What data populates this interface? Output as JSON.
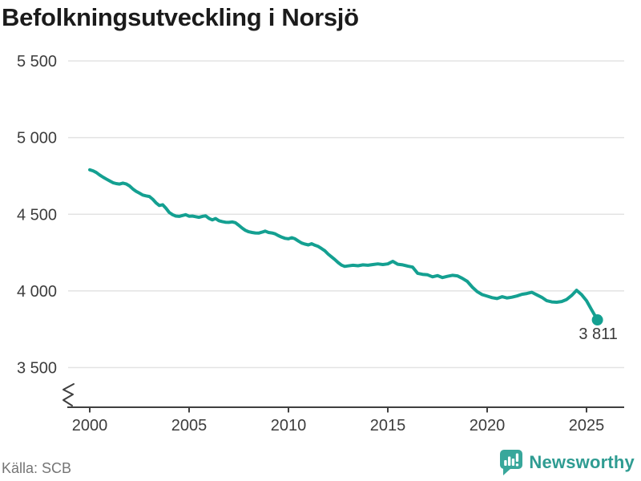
{
  "chart_data": {
    "type": "line",
    "title": "Befolkningsutveckling i Norsjö",
    "xlabel": "",
    "ylabel": "",
    "xlim": [
      1999,
      2027.2
    ],
    "ylim": [
      3500,
      5500
    ],
    "axis_break_bottom_left": true,
    "grid": "horizontal",
    "x_ticks": [
      2000,
      2005,
      2010,
      2015,
      2020,
      2025
    ],
    "x_tick_labels": [
      "2000",
      "2005",
      "2010",
      "2015",
      "2020",
      "2025"
    ],
    "y_ticks": [
      3500,
      4000,
      4500,
      5000,
      5500
    ],
    "y_tick_labels": [
      "3 500",
      "4 000",
      "4 500",
      "5 000",
      "5 500"
    ],
    "last_point_label": "3 811",
    "colors": {
      "line": "#14a091",
      "grid": "#e3e3e3",
      "axis": "#3f3f3f",
      "tick_label": "#3d3d3d",
      "annotation": "#3a3a3a"
    },
    "series": [
      {
        "name": "Befolkning",
        "points": [
          [
            2000.0,
            4790
          ],
          [
            2000.17,
            4783
          ],
          [
            2000.33,
            4772
          ],
          [
            2000.5,
            4756
          ],
          [
            2000.67,
            4742
          ],
          [
            2000.83,
            4730
          ],
          [
            2001.0,
            4718
          ],
          [
            2001.17,
            4706
          ],
          [
            2001.33,
            4700
          ],
          [
            2001.5,
            4697
          ],
          [
            2001.67,
            4703
          ],
          [
            2001.83,
            4698
          ],
          [
            2002.0,
            4685
          ],
          [
            2002.17,
            4665
          ],
          [
            2002.33,
            4650
          ],
          [
            2002.5,
            4638
          ],
          [
            2002.67,
            4625
          ],
          [
            2002.83,
            4620
          ],
          [
            2003.0,
            4616
          ],
          [
            2003.17,
            4598
          ],
          [
            2003.33,
            4575
          ],
          [
            2003.5,
            4557
          ],
          [
            2003.67,
            4562
          ],
          [
            2003.83,
            4540
          ],
          [
            2004.0,
            4512
          ],
          [
            2004.17,
            4497
          ],
          [
            2004.33,
            4488
          ],
          [
            2004.5,
            4486
          ],
          [
            2004.67,
            4492
          ],
          [
            2004.83,
            4497
          ],
          [
            2005.0,
            4487
          ],
          [
            2005.17,
            4488
          ],
          [
            2005.33,
            4484
          ],
          [
            2005.5,
            4480
          ],
          [
            2005.67,
            4486
          ],
          [
            2005.83,
            4490
          ],
          [
            2006.0,
            4473
          ],
          [
            2006.17,
            4463
          ],
          [
            2006.33,
            4472
          ],
          [
            2006.5,
            4458
          ],
          [
            2006.67,
            4452
          ],
          [
            2006.83,
            4448
          ],
          [
            2007.0,
            4447
          ],
          [
            2007.17,
            4450
          ],
          [
            2007.33,
            4445
          ],
          [
            2007.5,
            4428
          ],
          [
            2007.67,
            4410
          ],
          [
            2007.83,
            4395
          ],
          [
            2008.0,
            4386
          ],
          [
            2008.17,
            4381
          ],
          [
            2008.33,
            4378
          ],
          [
            2008.5,
            4377
          ],
          [
            2008.67,
            4383
          ],
          [
            2008.83,
            4390
          ],
          [
            2009.0,
            4381
          ],
          [
            2009.17,
            4378
          ],
          [
            2009.33,
            4372
          ],
          [
            2009.5,
            4360
          ],
          [
            2009.67,
            4350
          ],
          [
            2009.83,
            4343
          ],
          [
            2010.0,
            4340
          ],
          [
            2010.17,
            4347
          ],
          [
            2010.33,
            4340
          ],
          [
            2010.5,
            4325
          ],
          [
            2010.67,
            4312
          ],
          [
            2010.83,
            4305
          ],
          [
            2011.0,
            4300
          ],
          [
            2011.17,
            4308
          ],
          [
            2011.33,
            4298
          ],
          [
            2011.5,
            4290
          ],
          [
            2011.67,
            4276
          ],
          [
            2011.83,
            4262
          ],
          [
            2012.0,
            4240
          ],
          [
            2012.17,
            4222
          ],
          [
            2012.33,
            4205
          ],
          [
            2012.5,
            4185
          ],
          [
            2012.67,
            4168
          ],
          [
            2012.83,
            4160
          ],
          [
            2013.0,
            4163
          ],
          [
            2013.25,
            4167
          ],
          [
            2013.5,
            4164
          ],
          [
            2013.75,
            4170
          ],
          [
            2014.0,
            4167
          ],
          [
            2014.25,
            4172
          ],
          [
            2014.5,
            4176
          ],
          [
            2014.75,
            4172
          ],
          [
            2015.0,
            4176
          ],
          [
            2015.25,
            4193
          ],
          [
            2015.5,
            4174
          ],
          [
            2015.75,
            4170
          ],
          [
            2016.0,
            4162
          ],
          [
            2016.25,
            4155
          ],
          [
            2016.5,
            4115
          ],
          [
            2016.75,
            4108
          ],
          [
            2017.0,
            4105
          ],
          [
            2017.25,
            4092
          ],
          [
            2017.5,
            4100
          ],
          [
            2017.75,
            4087
          ],
          [
            2018.0,
            4095
          ],
          [
            2018.25,
            4102
          ],
          [
            2018.5,
            4098
          ],
          [
            2018.75,
            4082
          ],
          [
            2019.0,
            4062
          ],
          [
            2019.25,
            4025
          ],
          [
            2019.5,
            3995
          ],
          [
            2019.75,
            3976
          ],
          [
            2020.0,
            3966
          ],
          [
            2020.25,
            3956
          ],
          [
            2020.5,
            3950
          ],
          [
            2020.75,
            3962
          ],
          [
            2021.0,
            3954
          ],
          [
            2021.25,
            3959
          ],
          [
            2021.5,
            3967
          ],
          [
            2021.75,
            3978
          ],
          [
            2022.0,
            3983
          ],
          [
            2022.25,
            3991
          ],
          [
            2022.5,
            3974
          ],
          [
            2022.75,
            3958
          ],
          [
            2023.0,
            3936
          ],
          [
            2023.25,
            3928
          ],
          [
            2023.5,
            3926
          ],
          [
            2023.75,
            3931
          ],
          [
            2024.0,
            3944
          ],
          [
            2024.25,
            3970
          ],
          [
            2024.5,
            4004
          ],
          [
            2024.75,
            3976
          ],
          [
            2025.0,
            3936
          ],
          [
            2025.25,
            3878
          ],
          [
            2025.55,
            3811
          ]
        ]
      }
    ],
    "legend": "none"
  },
  "footer": {
    "source": "Källa: SCB",
    "brand": "Newsworthy",
    "brand_color": "#2f9c92",
    "logo_color": "#38a79b"
  }
}
